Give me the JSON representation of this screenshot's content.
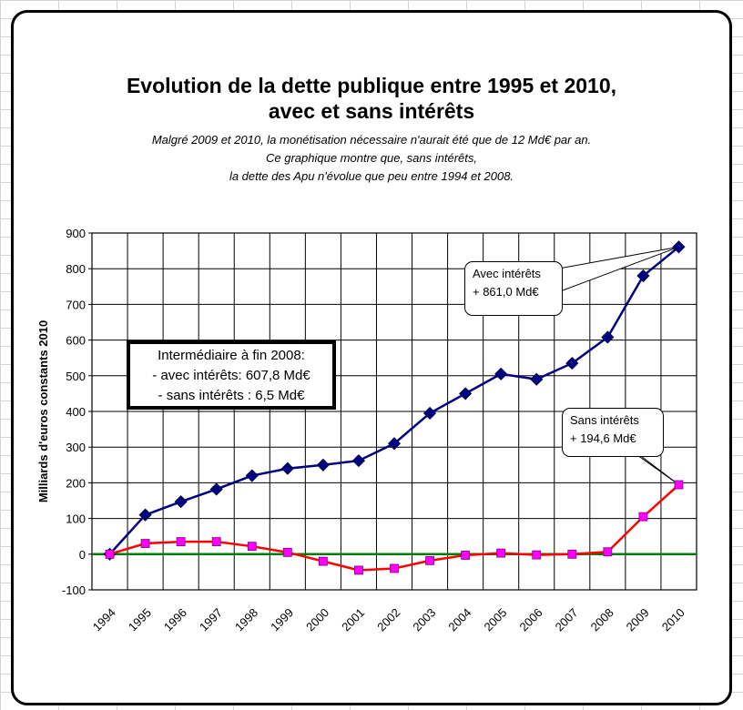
{
  "chart_data": {
    "type": "line",
    "title": "Evolution de la dette publique entre 1995 et 2010,",
    "title_line2": "avec et sans intérêts",
    "subtitle": [
      "Malgré 2009 et 2010, la monétisation nécessaire n'aurait été que de 12 Md€ par an.",
      "Ce graphique montre que, sans intérêts,",
      "la dette des Apu n'évolue que peu entre 1994 et 2008."
    ],
    "xlabel": "",
    "ylabel": "Milliards d'euros constants 2010",
    "ylim": [
      -100,
      900
    ],
    "yticks": [
      -100,
      0,
      100,
      200,
      300,
      400,
      500,
      600,
      700,
      800,
      900
    ],
    "categories": [
      "1994",
      "1995",
      "1996",
      "1997",
      "1998",
      "1999",
      "2000",
      "2001",
      "2002",
      "2003",
      "2004",
      "2005",
      "2006",
      "2007",
      "2008",
      "2009",
      "2010"
    ],
    "grid": true,
    "series": [
      {
        "name": "Avec intérêts",
        "color": "#000080",
        "marker": "diamond",
        "values": [
          0,
          110,
          147,
          182,
          220,
          240,
          250,
          262,
          310,
          395,
          450,
          505,
          490,
          535,
          608,
          780,
          861
        ]
      },
      {
        "name": "Sans intérêts",
        "color": "#ff0000",
        "marker_color": "#ff00ff",
        "marker": "square",
        "values": [
          0,
          30,
          35,
          35,
          22,
          5,
          -20,
          -45,
          -40,
          -18,
          -3,
          3,
          -2,
          0,
          6.5,
          105,
          194.6
        ]
      }
    ],
    "zero_line_color": "#008000",
    "annotations": {
      "avec": [
        "Avec intérêts",
        "+ 861,0 Md€"
      ],
      "sans": [
        "Sans intérêts",
        "+ 194,6 Md€"
      ],
      "intermediaire": [
        "Intermédiaire à fin 2008:",
        "- avec intérêts: 607,8 Md€",
        "- sans intérêts : 6,5 Md€"
      ]
    }
  }
}
